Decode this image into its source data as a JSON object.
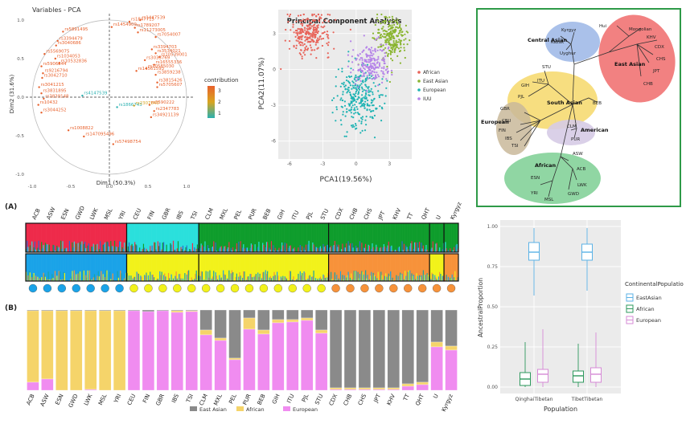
{
  "pca_variables": {
    "title": "Variables - PCA",
    "xlabel": "Dim1 (50.3%)",
    "ylabel": "Dim2 (31.6%)",
    "x_ticks": [
      "-1.0",
      "-0.5",
      "0.0",
      "0.5",
      "1.0"
    ],
    "y_ticks": [
      "1.0",
      "0.5",
      "0.0",
      "-0.5",
      "-1.0"
    ],
    "legend_title": "contribution",
    "legend_ticks": [
      "3",
      "2",
      "1"
    ],
    "colors": {
      "high": "#e8612c",
      "mid": "#d9a520",
      "low": "#2ab0b0"
    },
    "labels": [
      {
        "text": "rs1847715",
        "x": 0.26,
        "y": 0.98,
        "c": 3
      },
      {
        "text": "rs1447539",
        "x": 0.4,
        "y": 1.0,
        "c": 3
      },
      {
        "text": "rs1789207",
        "x": 0.33,
        "y": 0.9,
        "c": 3
      },
      {
        "text": "rs11273005",
        "x": 0.37,
        "y": 0.84,
        "c": 3
      },
      {
        "text": "rs1454909",
        "x": 0.03,
        "y": 0.91,
        "c": 3
      },
      {
        "text": "rs5891495",
        "x": -0.6,
        "y": 0.85,
        "c": 3
      },
      {
        "text": "rs3394479",
        "x": -0.67,
        "y": 0.73,
        "c": 3
      },
      {
        "text": "rs7054007",
        "x": 0.6,
        "y": 0.78,
        "c": 3
      },
      {
        "text": "rs3040686",
        "x": -0.69,
        "y": 0.67,
        "c": 3
      },
      {
        "text": "rs5569075",
        "x": -0.84,
        "y": 0.56,
        "c": 3
      },
      {
        "text": "rs3394703",
        "x": 0.55,
        "y": 0.62,
        "c": 3
      },
      {
        "text": "rs3534021",
        "x": 0.6,
        "y": 0.57,
        "c": 3
      },
      {
        "text": "rs10539001",
        "x": 0.65,
        "y": 0.52,
        "c": 3
      },
      {
        "text": "rs1034053",
        "x": -0.7,
        "y": 0.5,
        "c": 3
      },
      {
        "text": "rs3033769",
        "x": 0.46,
        "y": 0.48,
        "c": 3
      },
      {
        "text": "rs10532836",
        "x": -0.65,
        "y": 0.44,
        "c": 3
      },
      {
        "text": "rs5906844",
        "x": -0.88,
        "y": 0.4,
        "c": 3
      },
      {
        "text": "rs16555336",
        "x": 0.58,
        "y": 0.42,
        "c": 3
      },
      {
        "text": "rs10585030",
        "x": 0.48,
        "y": 0.37,
        "c": 3
      },
      {
        "text": "rs14561593",
        "x": 0.35,
        "y": 0.34,
        "c": 3
      },
      {
        "text": "rs9216794",
        "x": -0.86,
        "y": 0.31,
        "c": 3
      },
      {
        "text": "rs3859238",
        "x": 0.6,
        "y": 0.29,
        "c": 3
      },
      {
        "text": "rs3042710",
        "x": -0.87,
        "y": 0.25,
        "c": 3
      },
      {
        "text": "rs3815426",
        "x": 0.62,
        "y": 0.19,
        "c": 3
      },
      {
        "text": "rs4147539",
        "x": -0.35,
        "y": 0.02,
        "c": 1
      },
      {
        "text": "rs5705607",
        "x": 0.62,
        "y": 0.13,
        "c": 3
      },
      {
        "text": "rs3041215",
        "x": -0.91,
        "y": 0.13,
        "c": 3
      },
      {
        "text": "rs3831895",
        "x": -0.88,
        "y": 0.05,
        "c": 3
      },
      {
        "text": "rs3839148",
        "x": -0.85,
        "y": -0.02,
        "c": 3
      },
      {
        "text": "rs10432",
        "x": -0.92,
        "y": -0.1,
        "c": 3
      },
      {
        "text": "rs1866743",
        "x": 0.1,
        "y": -0.13,
        "c": 1
      },
      {
        "text": "rs2307840",
        "x": 0.32,
        "y": -0.11,
        "c": 2
      },
      {
        "text": "rs3590222",
        "x": 0.52,
        "y": -0.1,
        "c": 3
      },
      {
        "text": "rs2347783",
        "x": 0.58,
        "y": -0.18,
        "c": 3
      },
      {
        "text": "rs3044252",
        "x": -0.88,
        "y": -0.2,
        "c": 3
      },
      {
        "text": "rs34921139",
        "x": 0.54,
        "y": -0.26,
        "c": 3
      },
      {
        "text": "rs1008822",
        "x": -0.53,
        "y": -0.43,
        "c": 3
      },
      {
        "text": "rs147095496",
        "x": -0.33,
        "y": -0.51,
        "c": 3
      },
      {
        "text": "rs57498754",
        "x": 0.05,
        "y": -0.61,
        "c": 3
      }
    ]
  },
  "pca_scatter": {
    "title": "Principal Component Analysis",
    "xlabel": "PCA1(19.56%)",
    "ylabel": "PCA2(11.07%)",
    "x_ticks": [
      "-6",
      "-3",
      "0",
      "3"
    ],
    "y_ticks": [
      "3",
      "0",
      "-3",
      "-6"
    ],
    "legend": [
      {
        "name": "African",
        "color": "#e8645a"
      },
      {
        "name": "East Asian",
        "color": "#8ab531"
      },
      {
        "name": "European",
        "color": "#1fb3b3"
      },
      {
        "name": "IUU",
        "color": "#b583e8"
      }
    ]
  },
  "tree": {
    "groups": [
      {
        "name": "Central Asian",
        "color": "#9bb6e6"
      },
      {
        "name": "East Asian",
        "color": "#f06b6b"
      },
      {
        "name": "South Asian",
        "color": "#f6d86a"
      },
      {
        "name": "European",
        "color": "#c9b89a"
      },
      {
        "name": "American",
        "color": "#d6cbe6"
      },
      {
        "name": "African",
        "color": "#7ccf93"
      }
    ],
    "leaves": [
      "Kyrgyz",
      "Kazak",
      "Uyghur",
      "Hui",
      "Mongolian",
      "KHV",
      "CDX",
      "CHS",
      "JPT",
      "CHB",
      "STU",
      "ITU",
      "GIH",
      "PJL",
      "BEB",
      "GBR",
      "CEU",
      "FIN",
      "IBS",
      "TSI",
      "CLM",
      "PUR",
      "ASW",
      "ACB",
      "LWK",
      "GWD",
      "MSL",
      "YRI",
      "ESN"
    ],
    "border_color": "#2e9a48"
  },
  "structure": {
    "panel_a_label": "(A)",
    "panel_b_label": "(B)",
    "populations": [
      "ACB",
      "ASW",
      "ESN",
      "GWD",
      "LWK",
      "MSL",
      "YRI",
      "CEU",
      "FIN",
      "GBR",
      "IBS",
      "TSI",
      "CLM",
      "MXL",
      "PEL",
      "PUR",
      "BEB",
      "GIH",
      "ITU",
      "PJL",
      "STU",
      "CDX",
      "CHB",
      "CHS",
      "JPT",
      "KHV",
      "TT",
      "QHT",
      "U",
      "Kyrgyz"
    ],
    "row1_colors": {
      "red": "#ee2a4a",
      "cyan": "#2ae0dc",
      "green": "#0f9d2c",
      "blue": "#3366cc",
      "black": "#222222"
    },
    "row2_colors": {
      "blue": "#1aa3e8",
      "yellow": "#f2f21a",
      "orange": "#f7923a",
      "teal": "#1aa3a3",
      "black": "#222222"
    },
    "row1_groups": [
      {
        "pops": 7,
        "main": "red"
      },
      {
        "pops": 5,
        "main": "cyan"
      },
      {
        "pops": 9,
        "main": "green"
      },
      {
        "pops": 7,
        "main": "green"
      },
      {
        "pops": 1,
        "main": "green"
      },
      {
        "pops": 1,
        "main": "green"
      }
    ],
    "row2_groups": [
      {
        "pops": 7,
        "main": "blue"
      },
      {
        "pops": 5,
        "main": "yellow"
      },
      {
        "pops": 9,
        "main": "yellow"
      },
      {
        "pops": 7,
        "main": "orange"
      },
      {
        "pops": 1,
        "main": "yellow"
      },
      {
        "pops": 1,
        "main": "orange"
      }
    ],
    "legend": [
      {
        "name": "East Asian",
        "color": "#8a8a8a"
      },
      {
        "name": "African",
        "color": "#f5d46a"
      },
      {
        "name": "European",
        "color": "#f08cf0"
      }
    ]
  },
  "chart_data": [
    {
      "type": "bar",
      "categories": [
        "ACB",
        "ASW",
        "ESN",
        "GWD",
        "LWK",
        "MSL",
        "YRI",
        "CEU",
        "FIN",
        "GBR",
        "IBS",
        "TSI",
        "CLM",
        "MXL",
        "PEL",
        "PUR",
        "BEB",
        "GIH",
        "ITU",
        "PJL",
        "STU",
        "CDX",
        "CHB",
        "CHS",
        "JPT",
        "KHV",
        "TT",
        "QHT",
        "U",
        "Kyrgyz"
      ],
      "series": [
        {
          "name": "East Asian",
          "values": [
            0.01,
            0.01,
            0.01,
            0.01,
            0.01,
            0.01,
            0.01,
            0.01,
            0.02,
            0.01,
            0.01,
            0.01,
            0.25,
            0.35,
            0.6,
            0.1,
            0.25,
            0.12,
            0.12,
            0.1,
            0.25,
            0.97,
            0.97,
            0.97,
            0.97,
            0.97,
            0.92,
            0.9,
            0.4,
            0.45
          ]
        },
        {
          "name": "African",
          "values": [
            0.89,
            0.85,
            0.99,
            0.99,
            0.98,
            0.99,
            0.99,
            0.0,
            0.0,
            0.0,
            0.02,
            0.01,
            0.06,
            0.03,
            0.02,
            0.14,
            0.05,
            0.04,
            0.03,
            0.03,
            0.04,
            0.02,
            0.02,
            0.02,
            0.02,
            0.02,
            0.03,
            0.03,
            0.06,
            0.05
          ]
        },
        {
          "name": "European",
          "values": [
            0.1,
            0.14,
            0.0,
            0.0,
            0.01,
            0.0,
            0.0,
            0.99,
            0.98,
            0.99,
            0.97,
            0.98,
            0.69,
            0.62,
            0.38,
            0.76,
            0.7,
            0.84,
            0.85,
            0.87,
            0.71,
            0.01,
            0.01,
            0.01,
            0.01,
            0.01,
            0.05,
            0.07,
            0.54,
            0.5
          ]
        }
      ]
    },
    {
      "type": "box",
      "categories": [
        "QinghaiTibetan",
        "TibetTibetan"
      ],
      "xlabel": "Population",
      "ylabel": "AncestralProportion",
      "ylim": [
        0,
        1
      ],
      "y_ticks": [
        "1.00",
        "0.75",
        "0.50",
        "0.25",
        "0.00"
      ],
      "legend_title": "ContinentalPopulation",
      "series": [
        {
          "name": "EastAsian",
          "color": "#5bb2e6",
          "boxes": [
            {
              "min": 0.57,
              "q1": 0.79,
              "median": 0.84,
              "q3": 0.9,
              "max": 0.99
            },
            {
              "min": 0.6,
              "q1": 0.79,
              "median": 0.84,
              "q3": 0.89,
              "max": 0.99
            }
          ]
        },
        {
          "name": "African",
          "color": "#2e9a5e",
          "boxes": [
            {
              "min": 0.0,
              "q1": 0.01,
              "median": 0.05,
              "q3": 0.09,
              "max": 0.28
            },
            {
              "min": 0.0,
              "q1": 0.03,
              "median": 0.07,
              "q3": 0.1,
              "max": 0.27
            }
          ]
        },
        {
          "name": "European",
          "color": "#d68ad6",
          "boxes": [
            {
              "min": 0.0,
              "q1": 0.03,
              "median": 0.08,
              "q3": 0.11,
              "max": 0.36
            },
            {
              "min": 0.0,
              "q1": 0.03,
              "median": 0.08,
              "q3": 0.12,
              "max": 0.34
            }
          ]
        }
      ]
    }
  ]
}
